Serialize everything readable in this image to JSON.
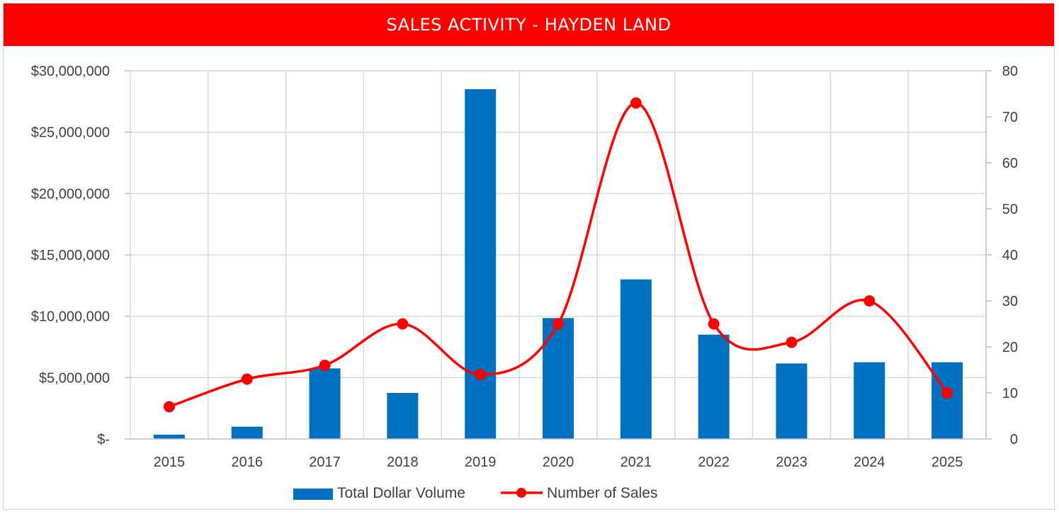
{
  "title": "SALES ACTIVITY - HAYDEN LAND",
  "colors": {
    "banner": "#ff0000",
    "bar": "#0070c0",
    "line": "#ff0000",
    "grid": "#d9d9d9"
  },
  "chart_data": {
    "type": "bar",
    "title": "SALES ACTIVITY - HAYDEN LAND",
    "categories": [
      "2015",
      "2016",
      "2017",
      "2018",
      "2019",
      "2020",
      "2021",
      "2022",
      "2023",
      "2024",
      "2025"
    ],
    "series": [
      {
        "name": "Total Dollar Volume",
        "type": "bar",
        "axis": "left",
        "values": [
          350000,
          1000000,
          5750000,
          3750000,
          28500000,
          9850000,
          13000000,
          8500000,
          6150000,
          6250000,
          6250000
        ]
      },
      {
        "name": "Number of Sales",
        "type": "line",
        "axis": "right",
        "smooth": true,
        "values": [
          7,
          13,
          16,
          25,
          14,
          25,
          73,
          25,
          21,
          30,
          10
        ]
      }
    ],
    "y_left": {
      "min": 0,
      "max": 30000000,
      "step": 5000000,
      "tick_labels": [
        "$-",
        "$5,000,000",
        "$10,000,000",
        "$15,000,000",
        "$20,000,000",
        "$25,000,000",
        "$30,000,000"
      ]
    },
    "y_right": {
      "min": 0,
      "max": 80,
      "step": 10,
      "tick_labels": [
        "0",
        "10",
        "20",
        "30",
        "40",
        "50",
        "60",
        "70",
        "80"
      ]
    },
    "grid": true,
    "legend": "bottom-center"
  }
}
